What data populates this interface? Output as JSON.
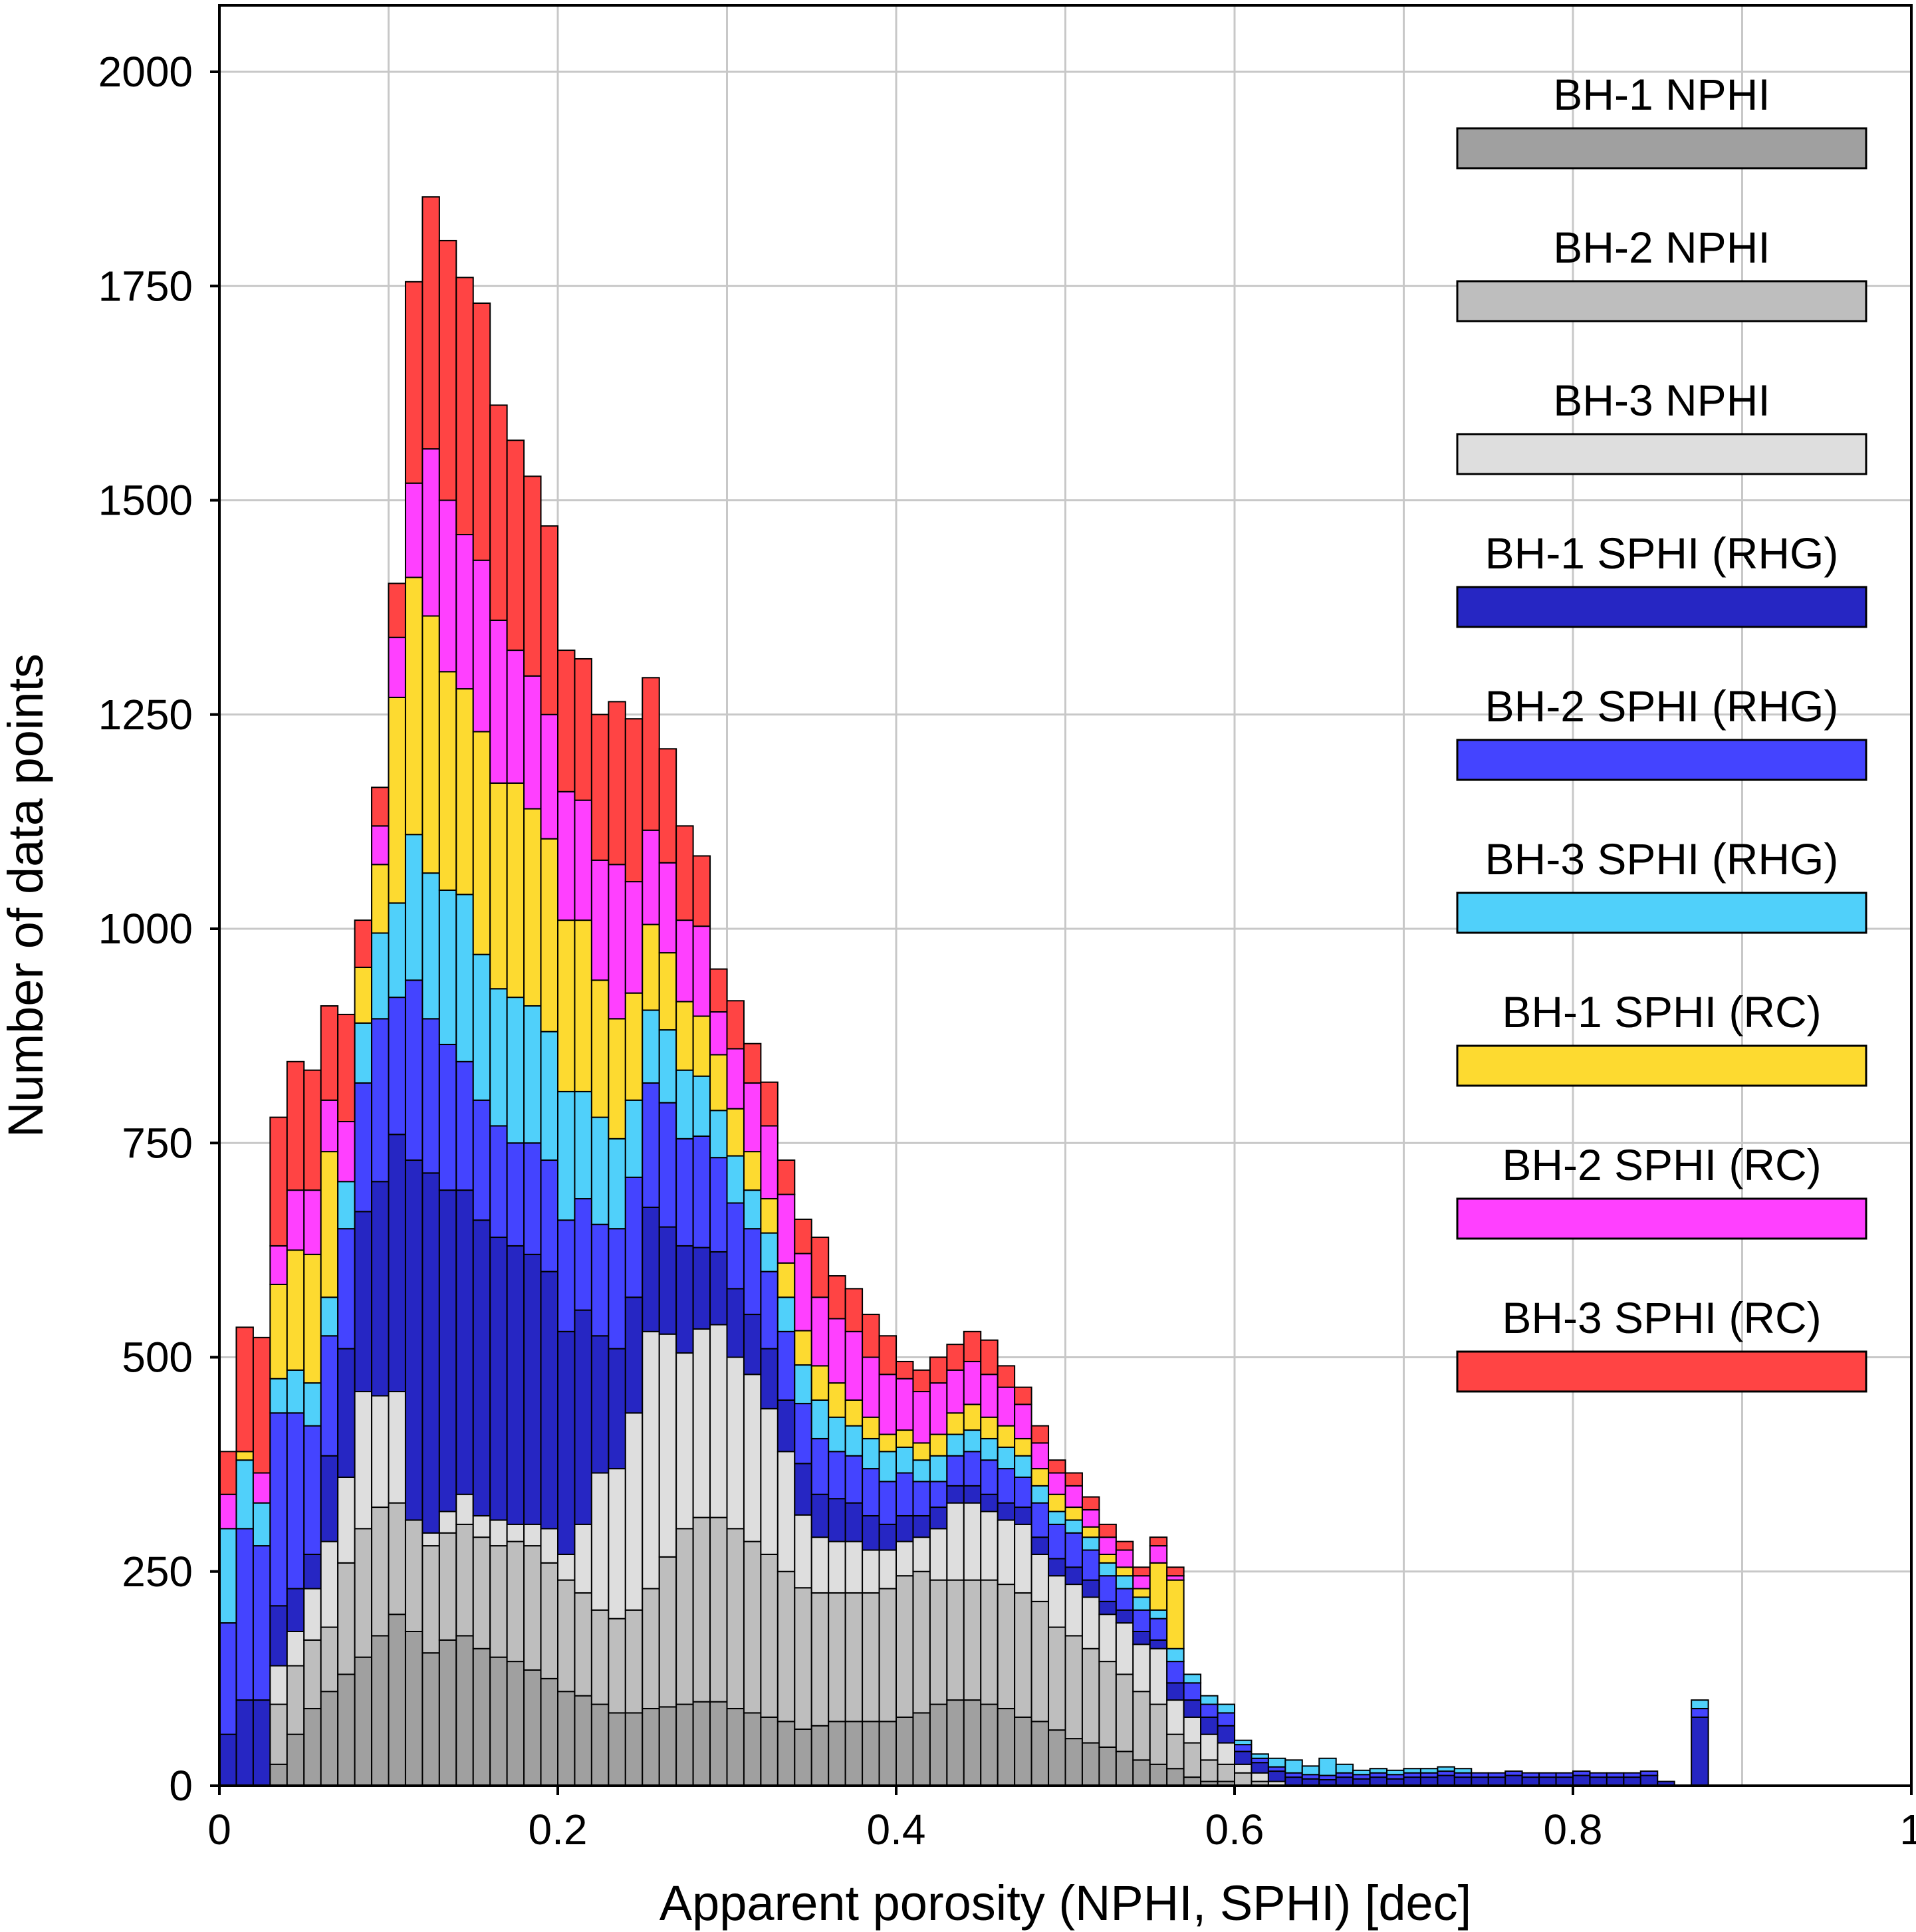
{
  "chart_data": {
    "type": "bar",
    "stacked": true,
    "title": "",
    "xlabel": "Apparent porosity (NPHI, SPHI) [dec]",
    "ylabel": "Number of data points",
    "xlim": [
      0,
      1
    ],
    "ylim": [
      0,
      2000
    ],
    "xticks": [
      0,
      0.2,
      0.4,
      0.6,
      0.8,
      1
    ],
    "xtick_labels": [
      "0",
      "0.2",
      "0.4",
      "0.6",
      "0.8",
      "1"
    ],
    "yticks": [
      0,
      250,
      500,
      750,
      1000,
      1250,
      1500,
      1750,
      2000
    ],
    "ytick_labels": [
      "0",
      "250",
      "500",
      "750",
      "1000",
      "1250",
      "1500",
      "1750",
      "2000"
    ],
    "grid": true,
    "legend_position": "right",
    "bin_width": 0.01,
    "x": [
      0.0,
      0.01,
      0.02,
      0.03,
      0.04,
      0.05,
      0.06,
      0.07,
      0.08,
      0.09,
      0.1,
      0.11,
      0.12,
      0.13,
      0.14,
      0.15,
      0.16,
      0.17,
      0.18,
      0.19,
      0.2,
      0.21,
      0.22,
      0.23,
      0.24,
      0.25,
      0.26,
      0.27,
      0.28,
      0.29,
      0.3,
      0.31,
      0.32,
      0.33,
      0.34,
      0.35,
      0.36,
      0.37,
      0.38,
      0.39,
      0.4,
      0.41,
      0.42,
      0.43,
      0.44,
      0.45,
      0.46,
      0.47,
      0.48,
      0.49,
      0.5,
      0.51,
      0.52,
      0.53,
      0.54,
      0.55,
      0.56,
      0.57,
      0.58,
      0.59,
      0.6,
      0.61,
      0.62,
      0.63,
      0.64,
      0.65,
      0.66,
      0.67,
      0.68,
      0.69,
      0.7,
      0.71,
      0.72,
      0.73,
      0.74,
      0.75,
      0.76,
      0.77,
      0.78,
      0.79,
      0.8,
      0.81,
      0.82,
      0.83,
      0.84,
      0.85,
      0.87
    ],
    "series": [
      {
        "name": "BH-1 NPHI",
        "color": "#a0a0a0",
        "values": [
          0,
          0,
          0,
          25,
          60,
          90,
          110,
          130,
          150,
          175,
          200,
          180,
          155,
          170,
          175,
          160,
          150,
          145,
          135,
          125,
          110,
          105,
          95,
          85,
          85,
          90,
          92,
          95,
          98,
          98,
          90,
          85,
          80,
          75,
          66,
          70,
          75,
          75,
          75,
          75,
          80,
          85,
          95,
          100,
          100,
          95,
          90,
          80,
          75,
          65,
          55,
          50,
          45,
          40,
          30,
          25,
          20,
          10,
          5,
          5,
          0,
          0,
          0,
          0,
          0,
          0,
          0,
          0,
          0,
          0,
          0,
          0,
          0,
          0,
          0,
          0,
          0,
          0,
          0,
          0,
          0,
          0,
          0,
          0,
          0,
          0,
          0
        ]
      },
      {
        "name": "BH-2 NPHI",
        "color": "#bebebe",
        "values": [
          0,
          0,
          0,
          70,
          80,
          80,
          75,
          130,
          150,
          150,
          130,
          130,
          125,
          125,
          130,
          130,
          130,
          140,
          145,
          135,
          130,
          120,
          110,
          110,
          120,
          140,
          175,
          205,
          215,
          215,
          210,
          200,
          190,
          175,
          165,
          155,
          150,
          150,
          150,
          155,
          165,
          165,
          145,
          140,
          140,
          145,
          145,
          145,
          140,
          120,
          120,
          110,
          100,
          90,
          80,
          70,
          40,
          40,
          25,
          20,
          15,
          5,
          0,
          0,
          0,
          0,
          0,
          0,
          0,
          0,
          0,
          0,
          0,
          0,
          0,
          0,
          0,
          0,
          0,
          0,
          0,
          0,
          0,
          0,
          0,
          0,
          0
        ]
      },
      {
        "name": "BH-3 NPHI",
        "color": "#dedede",
        "values": [
          0,
          0,
          0,
          45,
          40,
          60,
          100,
          100,
          160,
          130,
          130,
          0,
          15,
          25,
          35,
          25,
          30,
          20,
          25,
          40,
          30,
          80,
          160,
          175,
          230,
          300,
          260,
          205,
          220,
          225,
          200,
          195,
          170,
          140,
          85,
          65,
          60,
          60,
          50,
          45,
          40,
          40,
          60,
          90,
          90,
          80,
          75,
          80,
          55,
          60,
          60,
          60,
          55,
          60,
          55,
          65,
          40,
          30,
          30,
          25,
          10,
          10,
          5,
          0,
          0,
          0,
          0,
          0,
          0,
          0,
          0,
          0,
          0,
          0,
          0,
          0,
          0,
          0,
          0,
          0,
          0,
          0,
          0,
          0,
          0,
          0,
          0
        ]
      },
      {
        "name": "BH-1 SPHI (RHG)",
        "color": "#2626c3",
        "values": [
          60,
          100,
          100,
          70,
          50,
          40,
          100,
          150,
          210,
          250,
          300,
          420,
          420,
          375,
          355,
          345,
          330,
          325,
          315,
          300,
          260,
          250,
          160,
          140,
          135,
          145,
          125,
          125,
          95,
          85,
          80,
          70,
          70,
          60,
          60,
          50,
          50,
          45,
          40,
          30,
          30,
          25,
          25,
          20,
          20,
          20,
          20,
          20,
          20,
          20,
          20,
          20,
          15,
          15,
          15,
          10,
          20,
          20,
          20,
          20,
          15,
          12,
          12,
          10,
          8,
          7,
          10,
          8,
          10,
          8,
          10,
          10,
          12,
          10,
          10,
          10,
          12,
          10,
          10,
          10,
          12,
          10,
          10,
          10,
          12,
          5,
          80
        ]
      },
      {
        "name": "BH-2 SPHI (RHG)",
        "color": "#4444ff",
        "values": [
          130,
          200,
          180,
          225,
          205,
          150,
          140,
          140,
          150,
          190,
          160,
          210,
          180,
          170,
          150,
          140,
          130,
          120,
          130,
          130,
          130,
          130,
          130,
          140,
          140,
          145,
          145,
          125,
          130,
          110,
          100,
          100,
          90,
          80,
          70,
          65,
          55,
          55,
          55,
          50,
          50,
          40,
          30,
          35,
          40,
          40,
          40,
          35,
          40,
          40,
          40,
          35,
          30,
          25,
          25,
          25,
          25,
          20,
          15,
          15,
          8,
          5,
          5,
          5,
          5,
          5,
          5,
          5,
          5,
          5,
          5,
          5,
          5,
          5,
          5,
          5,
          5,
          5,
          5,
          5,
          5,
          5,
          5,
          5,
          5,
          0,
          10
        ]
      },
      {
        "name": "BH-3 SPHI (RHG)",
        "color": "#50d0fa",
        "values": [
          110,
          80,
          50,
          40,
          50,
          50,
          45,
          55,
          70,
          100,
          110,
          170,
          170,
          180,
          195,
          170,
          160,
          170,
          160,
          150,
          150,
          125,
          125,
          105,
          90,
          85,
          85,
          80,
          70,
          55,
          55,
          45,
          45,
          40,
          45,
          45,
          40,
          35,
          35,
          35,
          30,
          25,
          30,
          25,
          25,
          25,
          25,
          25,
          20,
          15,
          15,
          15,
          15,
          15,
          15,
          10,
          15,
          10,
          10,
          10,
          5,
          5,
          10,
          15,
          10,
          20,
          10,
          5,
          5,
          5,
          5,
          5,
          5,
          5,
          0,
          0,
          0,
          0,
          0,
          0,
          0,
          0,
          0,
          0,
          0,
          0,
          10
        ]
      },
      {
        "name": "BH-1 SPHI (RC)",
        "color": "#fdda30",
        "values": [
          0,
          10,
          0,
          110,
          140,
          150,
          170,
          0,
          65,
          80,
          240,
          300,
          300,
          255,
          240,
          260,
          240,
          250,
          230,
          225,
          200,
          200,
          160,
          140,
          125,
          100,
          90,
          80,
          70,
          65,
          55,
          45,
          40,
          40,
          40,
          40,
          40,
          30,
          25,
          20,
          20,
          20,
          25,
          25,
          30,
          25,
          25,
          20,
          20,
          20,
          15,
          12,
          10,
          10,
          10,
          55,
          80,
          0,
          0,
          0,
          0,
          0,
          0,
          0,
          0,
          0,
          0,
          0,
          0,
          0,
          0,
          0,
          0,
          0,
          0,
          0,
          0,
          0,
          0,
          0,
          0,
          0,
          0,
          0,
          0,
          0,
          0
        ]
      },
      {
        "name": "BH-2 SPHI (RC)",
        "color": "#ff40ff",
        "values": [
          40,
          0,
          35,
          45,
          70,
          75,
          60,
          70,
          0,
          45,
          70,
          110,
          195,
          200,
          180,
          200,
          190,
          155,
          155,
          145,
          150,
          140,
          140,
          180,
          130,
          110,
          105,
          95,
          105,
          50,
          70,
          80,
          85,
          80,
          90,
          80,
          75,
          80,
          70,
          70,
          60,
          60,
          60,
          50,
          50,
          50,
          45,
          40,
          30,
          25,
          25,
          20,
          20,
          20,
          15,
          20,
          5,
          0,
          0,
          0,
          0,
          0,
          0,
          0,
          0,
          0,
          0,
          0,
          0,
          0,
          0,
          0,
          0,
          0,
          0,
          0,
          0,
          0,
          0,
          0,
          0,
          0,
          0,
          0,
          0,
          0,
          0
        ]
      },
      {
        "name": "BH-3 SPHI (RC)",
        "color": "#ff4444",
        "values": [
          50,
          145,
          158,
          150,
          150,
          140,
          110,
          125,
          55,
          45,
          63,
          235,
          294,
          303,
          300,
          300,
          251,
          245,
          233,
          220,
          165,
          165,
          170,
          190,
          190,
          178,
          133,
          110,
          82,
          50,
          56,
          46,
          51,
          40,
          40,
          70,
          50,
          50,
          50,
          45,
          20,
          25,
          30,
          30,
          35,
          40,
          25,
          20,
          20,
          15,
          15,
          15,
          15,
          10,
          10,
          10,
          10,
          0,
          0,
          0,
          0,
          0,
          0,
          0,
          0,
          0,
          0,
          0,
          0,
          0,
          0,
          0,
          0,
          0,
          0,
          0,
          0,
          0,
          0,
          0,
          0,
          0,
          0,
          0,
          0,
          0,
          0
        ]
      }
    ]
  }
}
